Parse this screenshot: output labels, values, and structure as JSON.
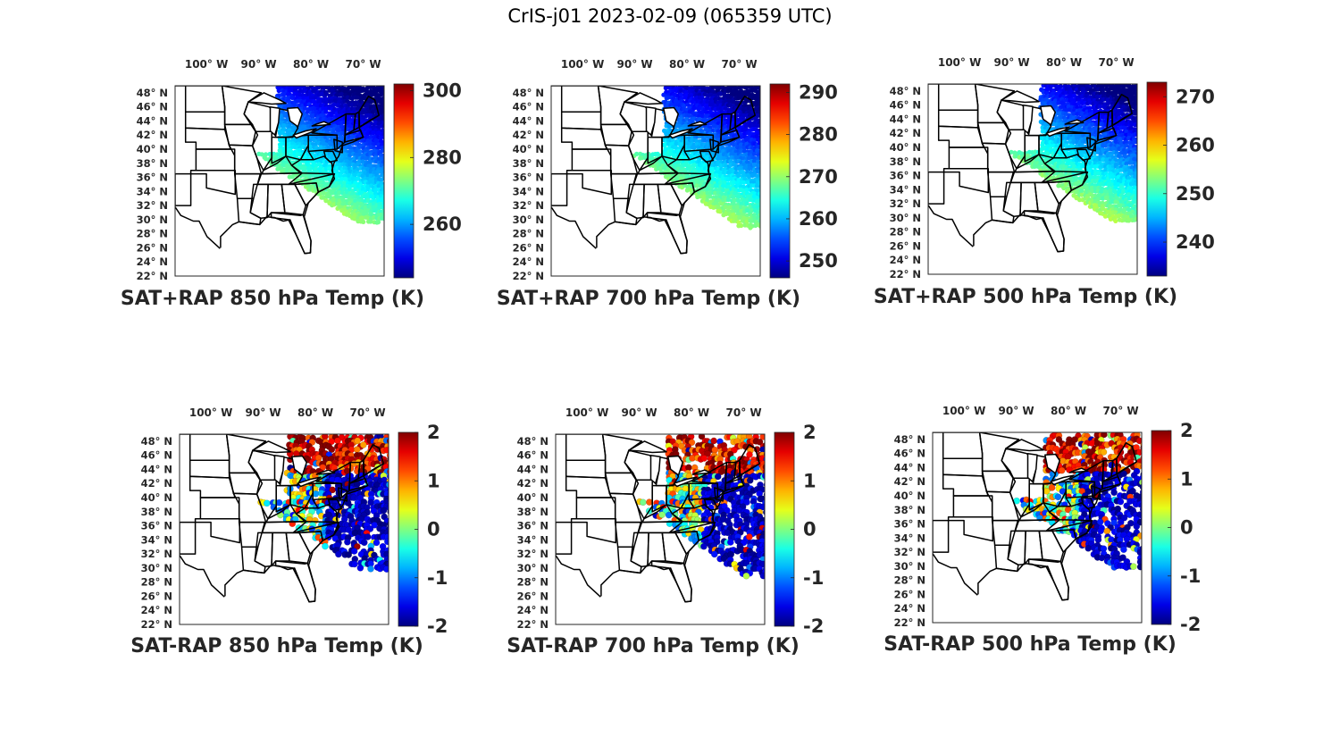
{
  "figure": {
    "title": "CrIS-j01 2023-02-09 (065359 UTC)"
  },
  "map_axes": {
    "lon_ticks": [
      "100° W",
      "90° W",
      "80° W",
      "70° W"
    ],
    "lat_ticks": [
      "48° N",
      "46° N",
      "44° N",
      "42° N",
      "40° N",
      "38° N",
      "36° N",
      "34° N",
      "32° N",
      "30° N",
      "28° N",
      "26° N",
      "24° N",
      "22° N"
    ],
    "extent": {
      "lon": [
        -106,
        -66
      ],
      "lat": [
        22,
        49
      ]
    },
    "basemap": "US state boundaries"
  },
  "chart_data": [
    {
      "type": "heatmap",
      "title": "SAT+RAP 850 hPa Temp (K)",
      "colormap": "jet",
      "clim": [
        244,
        302
      ],
      "colorbar_ticks": [
        260,
        280,
        300
      ],
      "field": "temperature"
    },
    {
      "type": "heatmap",
      "title": "SAT+RAP 700 hPa Temp (K)",
      "colormap": "jet",
      "clim": [
        246,
        292
      ],
      "colorbar_ticks": [
        250,
        260,
        270,
        280,
        290
      ],
      "field": "temperature"
    },
    {
      "type": "heatmap",
      "title": "SAT+RAP 500 hPa Temp (K)",
      "colormap": "jet",
      "clim": [
        233,
        273
      ],
      "colorbar_ticks": [
        240,
        250,
        260,
        270
      ],
      "field": "temperature"
    },
    {
      "type": "heatmap",
      "title": "SAT-RAP 850 hPa Temp (K)",
      "colormap": "jet",
      "clim": [
        -2,
        2
      ],
      "colorbar_ticks": [
        -2,
        -1,
        0,
        1,
        2
      ],
      "field": "difference"
    },
    {
      "type": "heatmap",
      "title": "SAT-RAP 700 hPa Temp (K)",
      "colormap": "jet",
      "clim": [
        -2,
        2
      ],
      "colorbar_ticks": [
        -2,
        -1,
        0,
        1,
        2
      ],
      "field": "difference"
    },
    {
      "type": "heatmap",
      "title": "SAT-RAP 500 hPa Temp (K)",
      "colormap": "jet",
      "clim": [
        -2,
        2
      ],
      "colorbar_ticks": [
        -2,
        -1,
        0,
        1,
        2
      ],
      "field": "difference"
    }
  ]
}
